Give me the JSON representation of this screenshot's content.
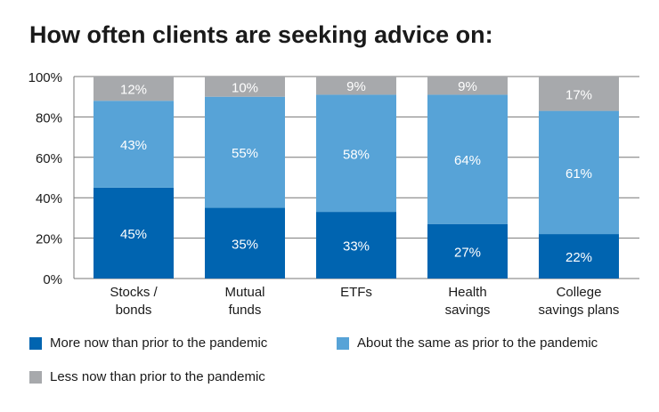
{
  "chart_data": {
    "type": "bar",
    "stacked": true,
    "title": "How often clients are seeking advice on:",
    "categories": [
      [
        "Stocks /",
        "bonds"
      ],
      [
        "Mutual",
        "funds"
      ],
      [
        "ETFs"
      ],
      [
        "Health",
        "savings"
      ],
      [
        "College",
        "savings plans"
      ]
    ],
    "series": [
      {
        "name": "More now than prior to the pandemic",
        "color": "#0064B0",
        "values": [
          45,
          35,
          33,
          27,
          22
        ]
      },
      {
        "name": "About the same as prior to the pandemic",
        "color": "#57A3D7",
        "values": [
          43,
          55,
          58,
          64,
          61
        ]
      },
      {
        "name": "Less now than prior to the pandemic",
        "color": "#A7A9AC",
        "values": [
          12,
          10,
          9,
          9,
          17
        ]
      }
    ],
    "data_labels": [
      [
        "45%",
        "35%",
        "33%",
        "27%",
        "22%"
      ],
      [
        "43%",
        "55%",
        "58%",
        "64%",
        "61%"
      ],
      [
        "12%",
        "10%",
        "9%",
        "9%",
        "17%"
      ]
    ],
    "yticks": [
      "0%",
      "20%",
      "40%",
      "60%",
      "80%",
      "100%"
    ],
    "ytick_values": [
      0,
      20,
      40,
      60,
      80,
      100
    ],
    "ylim": [
      0,
      100
    ],
    "xlabel": "",
    "ylabel": "",
    "grid": true,
    "legend_position": "bottom"
  }
}
